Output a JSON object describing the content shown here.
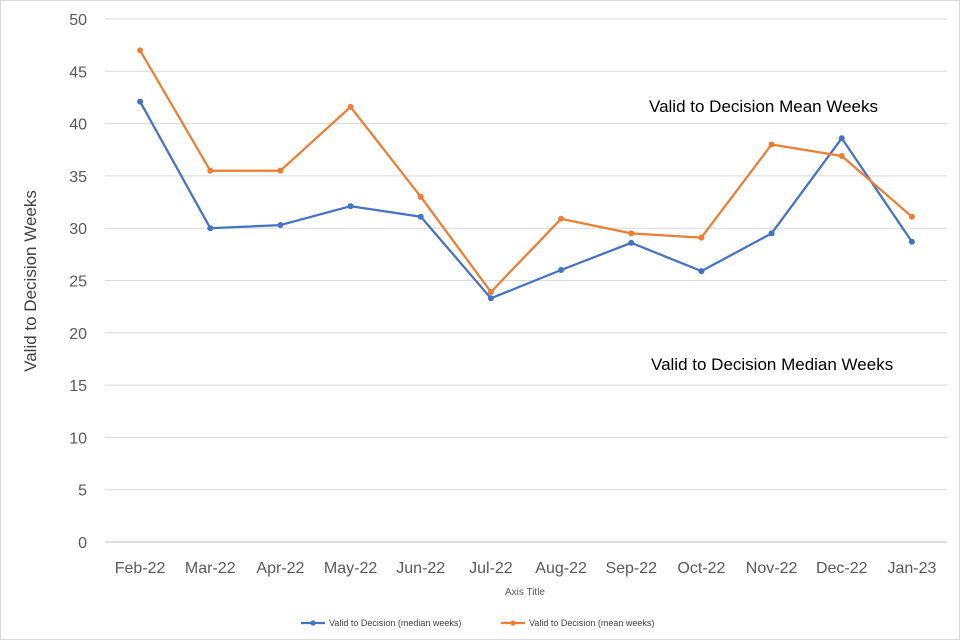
{
  "chart_data": {
    "type": "line",
    "categories": [
      "Feb-22",
      "Mar-22",
      "Apr-22",
      "May-22",
      "Jun-22",
      "Jul-22",
      "Aug-22",
      "Sep-22",
      "Oct-22",
      "Nov-22",
      "Dec-22",
      "Jan-23"
    ],
    "series": [
      {
        "name": "Valid to Decision (median weeks)",
        "color": "#4472c4",
        "values": [
          42.1,
          30.0,
          30.3,
          32.1,
          31.1,
          23.3,
          26.0,
          28.6,
          25.9,
          29.5,
          38.6,
          28.7
        ]
      },
      {
        "name": "Valid to Decision (mean weeks)",
        "color": "#ed7d31",
        "values": [
          47.0,
          35.5,
          35.5,
          41.6,
          33.0,
          23.9,
          30.9,
          29.5,
          29.1,
          38.0,
          36.9,
          31.1
        ]
      }
    ],
    "title": "",
    "xlabel": "Axis Title",
    "ylabel": "Valid to Decision Weeks",
    "ylim": [
      0,
      50
    ],
    "ytick_step": 5,
    "grid": true,
    "legend_position": "bottom",
    "annotations": [
      {
        "text": "Valid to Decision  Mean Weeks",
        "series": 1
      },
      {
        "text": "Valid to Decision  Median Weeks",
        "series": 0
      }
    ]
  }
}
